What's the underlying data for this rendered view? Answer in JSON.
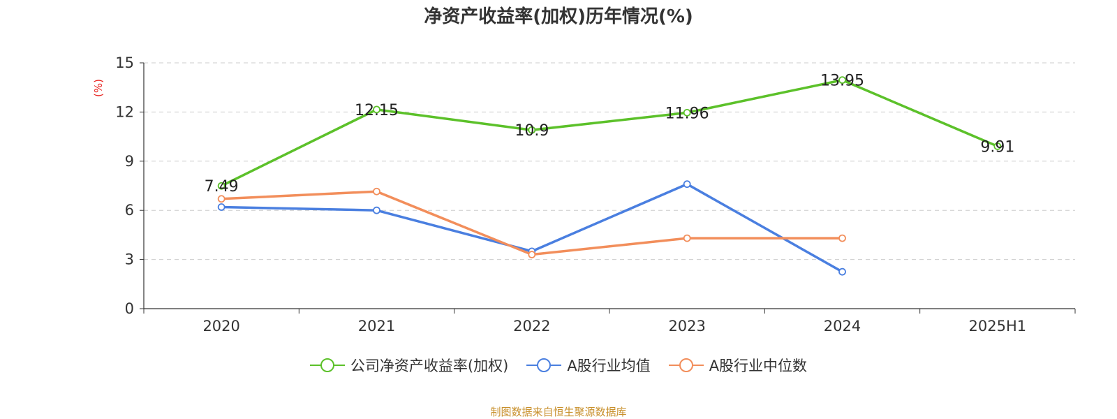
{
  "title": "净资产收益率(加权)历年情况(%)",
  "source_note": "制图数据来自恒生聚源数据库",
  "chart_data": {
    "type": "line",
    "title": "净资产收益率(加权)历年情况(%)",
    "xlabel": "",
    "ylabel": "(%)",
    "categories": [
      "2020",
      "2021",
      "2022",
      "2023",
      "2024",
      "2025H1"
    ],
    "ylim": [
      0,
      15
    ],
    "yticks": [
      0,
      3,
      6,
      9,
      12,
      15
    ],
    "grid": true,
    "legend_position": "bottom",
    "series": [
      {
        "name": "公司净资产收益率(加权)",
        "color": "#5cc12a",
        "show_labels": true,
        "values": [
          7.49,
          12.15,
          10.9,
          11.96,
          13.95,
          9.91
        ]
      },
      {
        "name": "A股行业均值",
        "color": "#4a7fe0",
        "show_labels": false,
        "values": [
          6.2,
          6.0,
          3.5,
          7.6,
          2.25,
          null
        ]
      },
      {
        "name": "A股行业中位数",
        "color": "#f28e5b",
        "show_labels": false,
        "values": [
          6.7,
          7.15,
          3.3,
          4.3,
          4.3,
          null
        ]
      }
    ],
    "ylabel_color": "#e8231f"
  }
}
